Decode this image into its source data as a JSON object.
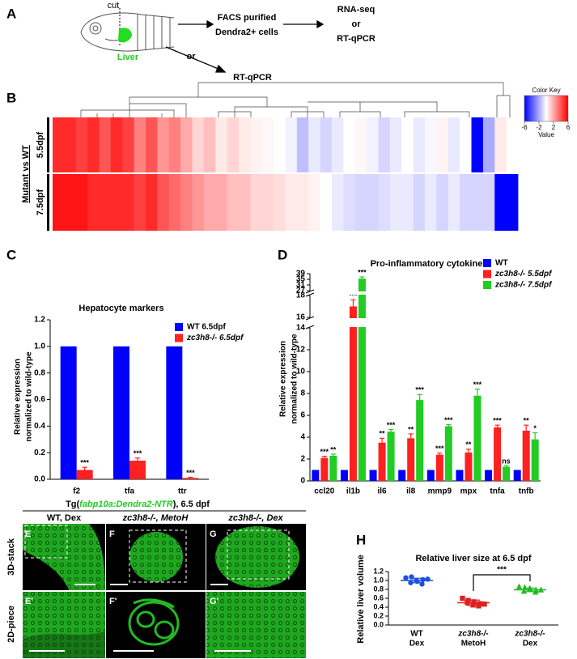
{
  "panel_labels": [
    "A",
    "B",
    "C",
    "D",
    "E",
    "F",
    "G",
    "E'",
    "F'",
    "G'",
    "H"
  ],
  "schematic": {
    "cut": "cut",
    "liver": "Liver",
    "facs": [
      "FACS purified",
      "Dendra2+ cells"
    ],
    "rnaseq": [
      "RNA-seq",
      "or",
      "RT-qPCR"
    ],
    "or": "or",
    "rtqpcr": "RT-qPCR"
  },
  "heatmap_row_group": "Mutant vs WT",
  "micrographs": {
    "header": [
      "Tg(",
      "fabp10a:Dendra2-NTR",
      "), 6.5 dpf"
    ],
    "columns": [
      "WT, Dex",
      "zc3h8-/-, MetoH",
      "zc3h8-/-, Dex"
    ],
    "rows": [
      "3D-stack",
      "2D-piece"
    ]
  },
  "chart_data": [
    {
      "type": "heatmap",
      "rows": [
        "5.5dpf",
        "7.5dpf"
      ],
      "values": [
        [
          5,
          5,
          4.5,
          5,
          4,
          5,
          4.5,
          3,
          4,
          2.5,
          3,
          2,
          1,
          1.5,
          0.5,
          1,
          0.5,
          0.3,
          0.2,
          0,
          -0.3,
          -1.5,
          -0.5,
          -1,
          -0.5,
          0,
          0.2,
          -0.3,
          -1,
          -0.5,
          0,
          -0.5,
          -0.2,
          0.3,
          -0.5,
          0,
          -6,
          -2,
          0.5,
          0
        ],
        [
          5.5,
          5.5,
          5.5,
          5,
          5,
          5,
          5,
          4.5,
          5,
          4,
          3.5,
          3,
          2.5,
          2,
          2,
          1.5,
          1.5,
          1,
          1,
          0.8,
          0.5,
          0.5,
          0.3,
          0,
          -0.5,
          -0.8,
          -1,
          -1,
          -0.8,
          -0.5,
          -0.5,
          -1,
          -0.5,
          -1,
          -0.5,
          -1,
          -1,
          -1,
          -6,
          -6
        ]
      ],
      "colorkey": {
        "title": "Color Key",
        "label": "Value",
        "lim": [
          -6,
          6
        ],
        "ticks": [
          -6,
          -2,
          2,
          6
        ],
        "colors": [
          "#0000ff",
          "#ffffff",
          "#ff0000"
        ]
      }
    },
    {
      "type": "bar",
      "title": "Hepatocyte markers",
      "ylabel": [
        "Relative expression",
        "normalized to wild-type"
      ],
      "categories": [
        "f2",
        "tfa",
        "ttr"
      ],
      "series": [
        {
          "name": "WT 6.5dpf",
          "color": "#0000ff",
          "values": [
            1,
            1,
            1
          ]
        },
        {
          "name": "zc3h8-/- 6.5dpf",
          "color": "#ff2020",
          "values": [
            0.07,
            0.14,
            0.01
          ],
          "errors": [
            0.02,
            0.02,
            0.005
          ],
          "significance": [
            "***",
            "***",
            "***"
          ]
        }
      ],
      "ylim": [
        0,
        1.2
      ],
      "yticks": [
        {
          "value": 0,
          "label": "0.0"
        },
        0.2,
        0.4,
        0.6,
        0.8,
        {
          "value": 1,
          "label": "1.0"
        },
        1.2
      ]
    },
    {
      "type": "bar",
      "title": "Pro-inflammatory cytokines",
      "ylabel": [
        "Relative expression",
        "normalized to wild-type"
      ],
      "categories": [
        "ccl20",
        "il1b",
        "il6",
        "il8",
        "mmp9",
        "mpx",
        "tnfa",
        "tnfb"
      ],
      "series": [
        {
          "name": "WT",
          "color": "#0000ff",
          "values": [
            1,
            1,
            1,
            1,
            1,
            1,
            1,
            1
          ]
        },
        {
          "name": "zc3h8-/-  5.5dpf",
          "color": "#ff2020",
          "values": [
            2.1,
            17,
            3.5,
            3.9,
            2.4,
            2.6,
            4.9,
            4.6
          ],
          "errors": [
            0.15,
            0.6,
            0.4,
            0.4,
            0.15,
            0.3,
            0.2,
            0.5
          ],
          "significance": [
            "***",
            "***",
            "**",
            "**",
            "***",
            "**",
            "***",
            "**"
          ]
        },
        {
          "name": "zc3h8-/-  7.5dpf",
          "color": "#22cc22",
          "values": [
            2.3,
            35.5,
            4.5,
            7.4,
            5,
            7.8,
            1.3,
            3.8
          ],
          "errors": [
            0.15,
            1.2,
            0.2,
            0.5,
            0.15,
            0.6,
            0.1,
            0.6
          ],
          "significance": [
            "**",
            "***",
            "***",
            "***",
            "***",
            "***",
            "ns",
            "*"
          ]
        }
      ],
      "ysegments": [
        {
          "ylim": [
            0,
            14
          ],
          "yticks": [
            0,
            2,
            4,
            6,
            8,
            10,
            12,
            14
          ]
        },
        {
          "ylim": [
            16,
            18
          ],
          "yticks": [
            16,
            18
          ]
        },
        {
          "ylim": [
            27,
            39
          ],
          "yticks": [
            27,
            31,
            35,
            39
          ]
        }
      ]
    },
    {
      "type": "strip",
      "title": "Relative liver size at 6.5 dpf",
      "ylabel": "Relative liver volume",
      "categories": [
        [
          "WT",
          "Dex"
        ],
        [
          "zc3h8-/-",
          "MetoH"
        ],
        [
          "zc3h8-/-",
          "Dex"
        ]
      ],
      "series": [
        {
          "color": "#1f4fe0",
          "marker": "circle",
          "values": [
            1.06,
            1.08,
            0.98,
            1.02,
            0.95,
            1.0,
            0.92,
            1.03
          ]
        },
        {
          "color": "#e02020",
          "marker": "square",
          "values": [
            0.6,
            0.55,
            0.52,
            0.48,
            0.5,
            0.45,
            0.43,
            0.47
          ]
        },
        {
          "color": "#22bb22",
          "marker": "triangle",
          "values": [
            0.86,
            0.84,
            0.8,
            0.78,
            0.76,
            0.82,
            0.74,
            0.79
          ]
        }
      ],
      "means": [
        1.0,
        0.5,
        0.79
      ],
      "sds": [
        0.05,
        0.06,
        0.04
      ],
      "significance": {
        "between": [
          1,
          2
        ],
        "label": "***"
      },
      "ylim": [
        0,
        1.2
      ],
      "yticks": [
        {
          "value": 0,
          "label": "0.0"
        },
        0.2,
        0.4,
        0.6,
        0.8,
        {
          "value": 1,
          "label": "1.0"
        },
        1.2
      ]
    }
  ]
}
